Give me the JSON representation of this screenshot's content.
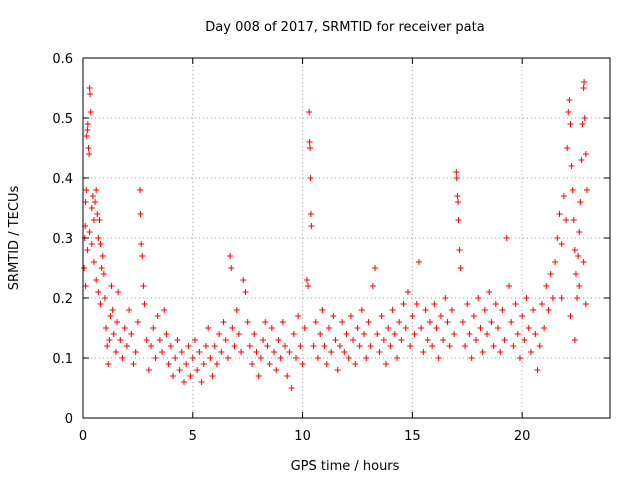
{
  "chart_data": {
    "type": "scatter",
    "title": "Day 008 of 2017, SRMTID for receiver pata",
    "xlabel": "GPS time / hours",
    "ylabel": "SRMTID / TECUs",
    "xlim": [
      0,
      24
    ],
    "ylim": [
      0,
      0.6
    ],
    "xticks": [
      0,
      5,
      10,
      15,
      20
    ],
    "xtick_labels": [
      "0",
      "5",
      "10",
      "15",
      "20"
    ],
    "yticks": [
      0,
      0.1,
      0.2,
      0.3,
      0.4,
      0.5,
      0.6
    ],
    "ytick_labels": [
      "0",
      "0.1",
      "0.2",
      "0.3",
      "0.4",
      "0.5",
      "0.6"
    ],
    "grid": true,
    "marker": "+",
    "color": "#ff0000",
    "series": [
      {
        "name": "SRMTID",
        "points": [
          [
            0.05,
            0.25
          ],
          [
            0.08,
            0.3
          ],
          [
            0.1,
            0.32
          ],
          [
            0.12,
            0.36
          ],
          [
            0.15,
            0.38
          ],
          [
            0.17,
            0.47
          ],
          [
            0.2,
            0.48
          ],
          [
            0.22,
            0.49
          ],
          [
            0.25,
            0.45
          ],
          [
            0.28,
            0.44
          ],
          [
            0.3,
            0.55
          ],
          [
            0.32,
            0.54
          ],
          [
            0.35,
            0.51
          ],
          [
            0.4,
            0.35
          ],
          [
            0.45,
            0.37
          ],
          [
            0.5,
            0.33
          ],
          [
            0.55,
            0.36
          ],
          [
            0.6,
            0.38
          ],
          [
            0.65,
            0.34
          ],
          [
            0.7,
            0.3
          ],
          [
            0.75,
            0.33
          ],
          [
            0.8,
            0.29
          ],
          [
            0.85,
            0.25
          ],
          [
            0.9,
            0.27
          ],
          [
            0.95,
            0.24
          ],
          [
            0.12,
            0.22
          ],
          [
            0.2,
            0.28
          ],
          [
            0.3,
            0.31
          ],
          [
            0.4,
            0.29
          ],
          [
            0.5,
            0.26
          ],
          [
            0.6,
            0.23
          ],
          [
            0.7,
            0.21
          ],
          [
            0.8,
            0.19
          ],
          [
            1.0,
            0.2
          ],
          [
            1.05,
            0.15
          ],
          [
            1.1,
            0.12
          ],
          [
            1.15,
            0.09
          ],
          [
            1.2,
            0.13
          ],
          [
            1.25,
            0.17
          ],
          [
            1.3,
            0.22
          ],
          [
            1.35,
            0.18
          ],
          [
            1.4,
            0.14
          ],
          [
            1.5,
            0.11
          ],
          [
            1.55,
            0.16
          ],
          [
            1.6,
            0.21
          ],
          [
            1.7,
            0.13
          ],
          [
            1.8,
            0.1
          ],
          [
            1.9,
            0.15
          ],
          [
            2.0,
            0.12
          ],
          [
            2.1,
            0.18
          ],
          [
            2.2,
            0.14
          ],
          [
            2.3,
            0.09
          ],
          [
            2.4,
            0.11
          ],
          [
            2.5,
            0.16
          ],
          [
            2.6,
            0.38
          ],
          [
            2.62,
            0.34
          ],
          [
            2.65,
            0.29
          ],
          [
            2.7,
            0.27
          ],
          [
            2.75,
            0.22
          ],
          [
            2.8,
            0.19
          ],
          [
            2.9,
            0.13
          ],
          [
            3.0,
            0.08
          ],
          [
            3.1,
            0.12
          ],
          [
            3.2,
            0.15
          ],
          [
            3.3,
            0.1
          ],
          [
            3.4,
            0.17
          ],
          [
            3.5,
            0.13
          ],
          [
            3.6,
            0.11
          ],
          [
            3.7,
            0.18
          ],
          [
            3.8,
            0.14
          ],
          [
            3.9,
            0.09
          ],
          [
            4.0,
            0.12
          ],
          [
            4.1,
            0.07
          ],
          [
            4.2,
            0.1
          ],
          [
            4.3,
            0.13
          ],
          [
            4.4,
            0.08
          ],
          [
            4.5,
            0.11
          ],
          [
            4.6,
            0.06
          ],
          [
            4.7,
            0.09
          ],
          [
            4.8,
            0.12
          ],
          [
            4.9,
            0.07
          ],
          [
            5.0,
            0.1
          ],
          [
            5.1,
            0.13
          ],
          [
            5.2,
            0.08
          ],
          [
            5.3,
            0.11
          ],
          [
            5.4,
            0.06
          ],
          [
            5.5,
            0.09
          ],
          [
            5.6,
            0.12
          ],
          [
            5.7,
            0.15
          ],
          [
            5.8,
            0.1
          ],
          [
            5.9,
            0.07
          ],
          [
            6.0,
            0.12
          ],
          [
            6.1,
            0.09
          ],
          [
            6.2,
            0.14
          ],
          [
            6.3,
            0.11
          ],
          [
            6.4,
            0.16
          ],
          [
            6.5,
            0.13
          ],
          [
            6.6,
            0.1
          ],
          [
            6.7,
            0.27
          ],
          [
            6.75,
            0.25
          ],
          [
            6.8,
            0.15
          ],
          [
            6.9,
            0.12
          ],
          [
            7.0,
            0.18
          ],
          [
            7.1,
            0.14
          ],
          [
            7.2,
            0.11
          ],
          [
            7.3,
            0.23
          ],
          [
            7.4,
            0.21
          ],
          [
            7.5,
            0.16
          ],
          [
            7.6,
            0.12
          ],
          [
            7.7,
            0.09
          ],
          [
            7.8,
            0.14
          ],
          [
            7.9,
            0.11
          ],
          [
            8.0,
            0.07
          ],
          [
            8.1,
            0.1
          ],
          [
            8.2,
            0.13
          ],
          [
            8.3,
            0.16
          ],
          [
            8.4,
            0.12
          ],
          [
            8.5,
            0.09
          ],
          [
            8.6,
            0.15
          ],
          [
            8.7,
            0.11
          ],
          [
            8.8,
            0.08
          ],
          [
            8.9,
            0.13
          ],
          [
            9.0,
            0.1
          ],
          [
            9.1,
            0.16
          ],
          [
            9.2,
            0.12
          ],
          [
            9.3,
            0.07
          ],
          [
            9.4,
            0.11
          ],
          [
            9.5,
            0.05
          ],
          [
            9.6,
            0.14
          ],
          [
            9.7,
            0.1
          ],
          [
            9.8,
            0.17
          ],
          [
            9.9,
            0.12
          ],
          [
            10.0,
            0.09
          ],
          [
            10.1,
            0.15
          ],
          [
            10.2,
            0.23
          ],
          [
            10.25,
            0.22
          ],
          [
            10.3,
            0.51
          ],
          [
            10.32,
            0.46
          ],
          [
            10.34,
            0.45
          ],
          [
            10.36,
            0.4
          ],
          [
            10.38,
            0.34
          ],
          [
            10.4,
            0.32
          ],
          [
            10.5,
            0.12
          ],
          [
            10.6,
            0.16
          ],
          [
            10.7,
            0.1
          ],
          [
            10.8,
            0.14
          ],
          [
            10.9,
            0.18
          ],
          [
            11.0,
            0.12
          ],
          [
            11.1,
            0.09
          ],
          [
            11.2,
            0.15
          ],
          [
            11.3,
            0.11
          ],
          [
            11.4,
            0.17
          ],
          [
            11.5,
            0.13
          ],
          [
            11.6,
            0.08
          ],
          [
            11.7,
            0.12
          ],
          [
            11.8,
            0.16
          ],
          [
            11.9,
            0.11
          ],
          [
            12.0,
            0.14
          ],
          [
            12.1,
            0.1
          ],
          [
            12.2,
            0.17
          ],
          [
            12.3,
            0.13
          ],
          [
            12.4,
            0.09
          ],
          [
            12.5,
            0.15
          ],
          [
            12.6,
            0.12
          ],
          [
            12.7,
            0.18
          ],
          [
            12.8,
            0.14
          ],
          [
            12.9,
            0.1
          ],
          [
            13.0,
            0.16
          ],
          [
            13.1,
            0.12
          ],
          [
            13.2,
            0.22
          ],
          [
            13.3,
            0.25
          ],
          [
            13.4,
            0.14
          ],
          [
            13.5,
            0.11
          ],
          [
            13.6,
            0.17
          ],
          [
            13.7,
            0.13
          ],
          [
            13.8,
            0.09
          ],
          [
            13.9,
            0.15
          ],
          [
            14.0,
            0.12
          ],
          [
            14.1,
            0.18
          ],
          [
            14.2,
            0.14
          ],
          [
            14.3,
            0.1
          ],
          [
            14.4,
            0.16
          ],
          [
            14.5,
            0.13
          ],
          [
            14.6,
            0.19
          ],
          [
            14.7,
            0.15
          ],
          [
            14.8,
            0.21
          ],
          [
            14.9,
            0.12
          ],
          [
            15.0,
            0.17
          ],
          [
            15.1,
            0.14
          ],
          [
            15.2,
            0.19
          ],
          [
            15.3,
            0.26
          ],
          [
            15.4,
            0.15
          ],
          [
            15.5,
            0.11
          ],
          [
            15.6,
            0.18
          ],
          [
            15.7,
            0.13
          ],
          [
            15.8,
            0.16
          ],
          [
            15.9,
            0.12
          ],
          [
            16.0,
            0.19
          ],
          [
            16.1,
            0.15
          ],
          [
            16.2,
            0.1
          ],
          [
            16.3,
            0.17
          ],
          [
            16.4,
            0.13
          ],
          [
            16.5,
            0.2
          ],
          [
            16.6,
            0.16
          ],
          [
            16.7,
            0.12
          ],
          [
            16.8,
            0.18
          ],
          [
            16.9,
            0.14
          ],
          [
            17.0,
            0.41
          ],
          [
            17.02,
            0.4
          ],
          [
            17.05,
            0.37
          ],
          [
            17.08,
            0.36
          ],
          [
            17.1,
            0.33
          ],
          [
            17.15,
            0.28
          ],
          [
            17.2,
            0.25
          ],
          [
            17.3,
            0.16
          ],
          [
            17.4,
            0.12
          ],
          [
            17.5,
            0.19
          ],
          [
            17.6,
            0.14
          ],
          [
            17.7,
            0.1
          ],
          [
            17.8,
            0.17
          ],
          [
            17.9,
            0.13
          ],
          [
            18.0,
            0.2
          ],
          [
            18.1,
            0.15
          ],
          [
            18.2,
            0.11
          ],
          [
            18.3,
            0.18
          ],
          [
            18.4,
            0.14
          ],
          [
            18.5,
            0.21
          ],
          [
            18.6,
            0.16
          ],
          [
            18.7,
            0.12
          ],
          [
            18.8,
            0.19
          ],
          [
            18.9,
            0.15
          ],
          [
            19.0,
            0.11
          ],
          [
            19.1,
            0.18
          ],
          [
            19.2,
            0.13
          ],
          [
            19.3,
            0.3
          ],
          [
            19.4,
            0.22
          ],
          [
            19.5,
            0.16
          ],
          [
            19.6,
            0.12
          ],
          [
            19.7,
            0.19
          ],
          [
            19.8,
            0.14
          ],
          [
            19.9,
            0.1
          ],
          [
            20.0,
            0.17
          ],
          [
            20.1,
            0.13
          ],
          [
            20.2,
            0.2
          ],
          [
            20.3,
            0.15
          ],
          [
            20.4,
            0.11
          ],
          [
            20.5,
            0.18
          ],
          [
            20.6,
            0.14
          ],
          [
            20.7,
            0.08
          ],
          [
            20.8,
            0.12
          ],
          [
            20.9,
            0.19
          ],
          [
            21.0,
            0.15
          ],
          [
            21.1,
            0.22
          ],
          [
            21.2,
            0.18
          ],
          [
            21.3,
            0.24
          ],
          [
            21.4,
            0.2
          ],
          [
            21.5,
            0.26
          ],
          [
            21.6,
            0.3
          ],
          [
            21.7,
            0.34
          ],
          [
            21.8,
            0.29
          ],
          [
            21.9,
            0.37
          ],
          [
            22.0,
            0.33
          ],
          [
            22.05,
            0.45
          ],
          [
            22.1,
            0.51
          ],
          [
            22.15,
            0.53
          ],
          [
            22.2,
            0.49
          ],
          [
            22.25,
            0.42
          ],
          [
            22.3,
            0.38
          ],
          [
            22.35,
            0.33
          ],
          [
            22.4,
            0.28
          ],
          [
            22.45,
            0.24
          ],
          [
            22.5,
            0.2
          ],
          [
            22.55,
            0.27
          ],
          [
            22.6,
            0.31
          ],
          [
            22.65,
            0.36
          ],
          [
            22.7,
            0.43
          ],
          [
            22.75,
            0.49
          ],
          [
            22.8,
            0.55
          ],
          [
            22.82,
            0.56
          ],
          [
            22.85,
            0.5
          ],
          [
            22.9,
            0.44
          ],
          [
            22.95,
            0.38
          ],
          [
            21.8,
            0.2
          ],
          [
            22.2,
            0.17
          ],
          [
            22.4,
            0.13
          ],
          [
            22.6,
            0.22
          ],
          [
            22.8,
            0.26
          ],
          [
            22.9,
            0.19
          ]
        ]
      }
    ]
  }
}
